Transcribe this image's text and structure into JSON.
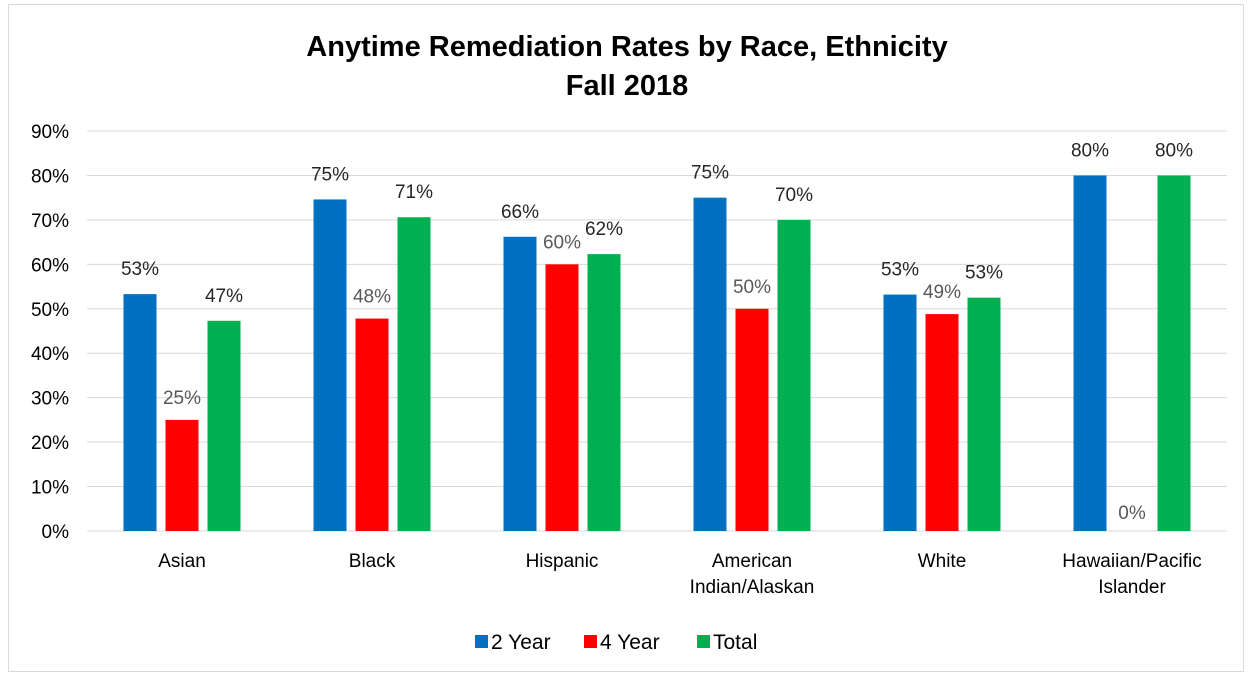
{
  "chart_data": {
    "type": "bar",
    "title": "Anytime Remediation Rates by Race, Ethnicity",
    "subtitle": "Fall 2018",
    "xlabel": "",
    "ylabel": "",
    "ylim": [
      0,
      90
    ],
    "yticks": [
      0,
      10,
      20,
      30,
      40,
      50,
      60,
      70,
      80,
      90
    ],
    "ytick_labels": [
      "0%",
      "10%",
      "20%",
      "30%",
      "40%",
      "50%",
      "60%",
      "70%",
      "80%",
      "90%"
    ],
    "grid": true,
    "legend_position": "bottom",
    "categories": [
      [
        "Asian"
      ],
      [
        "Black"
      ],
      [
        "Hispanic"
      ],
      [
        "American",
        "Indian/Alaskan"
      ],
      [
        "White"
      ],
      [
        "Hawaiian/Pacific",
        "Islander"
      ]
    ],
    "series": [
      {
        "name": "2 Year",
        "color": "#0070c0",
        "label_color": "#262626",
        "values": [
          53.3,
          74.6,
          66.2,
          75.0,
          53.2,
          80.0
        ],
        "labels": [
          "53%",
          "75%",
          "66%",
          "75%",
          "53%",
          "80%"
        ]
      },
      {
        "name": "4 Year",
        "color": "#ff0000",
        "label_color": "#595959",
        "values": [
          25.0,
          47.8,
          60.0,
          50.0,
          48.8,
          0.0
        ],
        "labels": [
          "25%",
          "48%",
          "60%",
          "50%",
          "49%",
          "0%"
        ]
      },
      {
        "name": "Total",
        "color": "#00b050",
        "label_color": "#262626",
        "values": [
          47.3,
          70.6,
          62.3,
          70.0,
          52.5,
          80.0
        ],
        "labels": [
          "47%",
          "71%",
          "62%",
          "70%",
          "53%",
          "80%"
        ]
      }
    ],
    "grid_color": "#d9d9d9"
  }
}
